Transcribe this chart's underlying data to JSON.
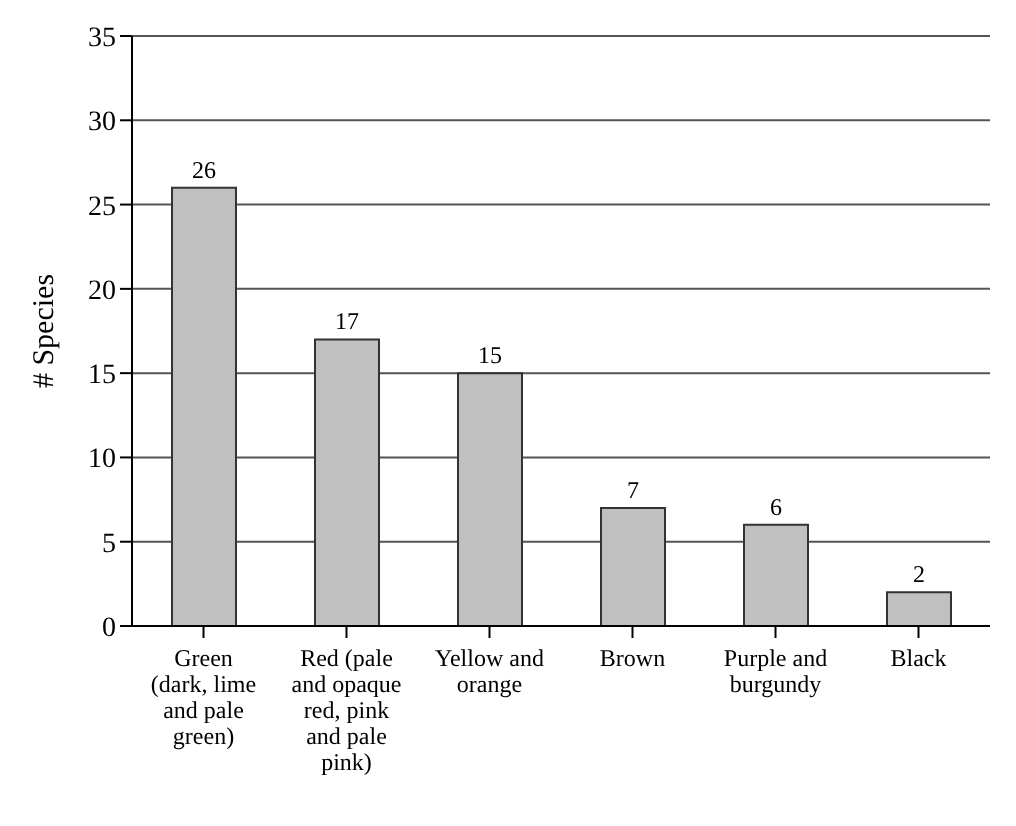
{
  "chart_data": {
    "type": "bar",
    "ylabel": "# Species",
    "categories": [
      "Green (dark, lime and pale green)",
      "Red (pale and opaque red, pink and pale pink)",
      "Yellow and orange",
      "Brown",
      "Purple and burgundy",
      "Black"
    ],
    "values": [
      26,
      17,
      15,
      7,
      6,
      2
    ],
    "color": "#c0c0c0",
    "ylim": [
      0,
      35
    ],
    "yticks": [
      0,
      5,
      10,
      15,
      20,
      25,
      30,
      35
    ],
    "grid": "y",
    "data_labels": true,
    "legend": false
  }
}
